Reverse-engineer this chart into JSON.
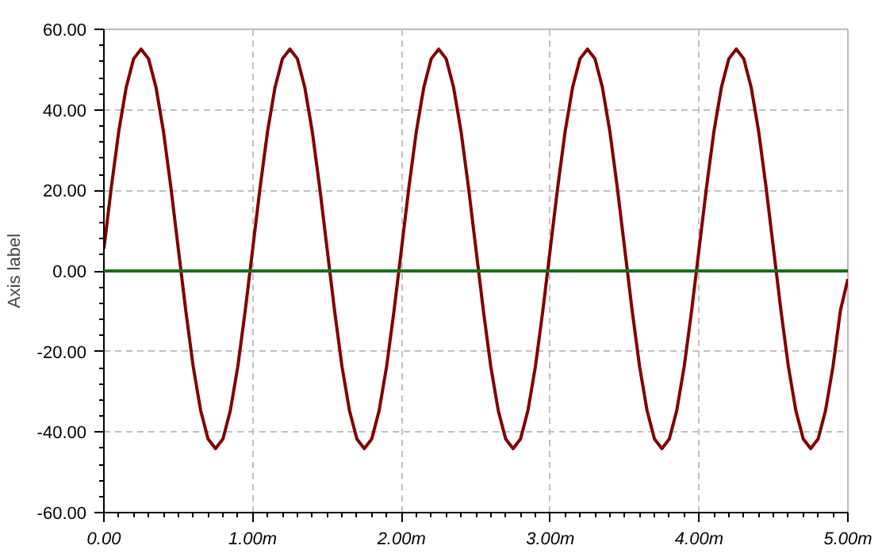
{
  "chart_data": {
    "type": "line",
    "ylabel": "Axis label",
    "x": [
      0,
      0.05,
      0.1,
      0.15,
      0.2,
      0.25,
      0.3,
      0.35,
      0.4,
      0.45,
      0.5,
      0.55,
      0.6,
      0.65,
      0.7,
      0.75,
      0.8,
      0.85,
      0.9,
      0.95,
      1,
      1.05,
      1.1,
      1.15,
      1.2,
      1.25,
      1.3,
      1.35,
      1.4,
      1.45,
      1.5,
      1.55,
      1.6,
      1.65,
      1.7,
      1.75,
      1.8,
      1.85,
      1.9,
      1.95,
      2,
      2.05,
      2.1,
      2.15,
      2.2,
      2.25,
      2.3,
      2.35,
      2.4,
      2.45,
      2.5,
      2.55,
      2.6,
      2.65,
      2.7,
      2.75,
      2.8,
      2.85,
      2.9,
      2.95,
      3,
      3.05,
      3.1,
      3.15,
      3.2,
      3.25,
      3.3,
      3.35,
      3.4,
      3.45,
      3.5,
      3.55,
      3.6,
      3.65,
      3.7,
      3.75,
      3.8,
      3.85,
      3.9,
      3.95,
      4,
      4.05,
      4.1,
      4.15,
      4.2,
      4.25,
      4.3,
      4.35,
      4.4,
      4.45,
      4.5,
      4.55,
      4.6,
      4.65,
      4.7,
      4.75,
      4.8,
      4.85,
      4.9,
      4.95,
      5
    ],
    "series": [
      {
        "color": "#800000",
        "values": [
          5.5,
          20.8,
          34.7,
          45.6,
          52.7,
          55.1,
          52.7,
          45.6,
          34.7,
          20.8,
          5.5,
          -9.8,
          -23.7,
          -34.6,
          -41.7,
          -44.1,
          -41.7,
          -34.6,
          -23.7,
          -9.8,
          5.5,
          20.8,
          34.7,
          45.6,
          52.7,
          55.1,
          52.7,
          45.6,
          34.7,
          20.8,
          5.5,
          -9.8,
          -23.7,
          -34.6,
          -41.7,
          -44.1,
          -41.7,
          -34.6,
          -23.7,
          -9.8,
          5.5,
          20.8,
          34.7,
          45.6,
          52.7,
          55.1,
          52.7,
          45.6,
          34.7,
          20.8,
          5.5,
          -9.8,
          -23.7,
          -34.6,
          -41.7,
          -44.1,
          -41.7,
          -34.6,
          -23.7,
          -9.8,
          5.5,
          20.8,
          34.7,
          45.6,
          52.7,
          55.1,
          52.7,
          45.6,
          34.7,
          20.8,
          5.5,
          -9.8,
          -23.7,
          -34.6,
          -41.7,
          -44.1,
          -41.7,
          -34.6,
          -23.7,
          -9.8,
          5.5,
          20.8,
          34.7,
          45.6,
          52.7,
          55.1,
          52.7,
          45.6,
          34.7,
          20.8,
          5.5,
          -9.8,
          -23.7,
          -34.6,
          -41.7,
          -44.1,
          -41.7,
          -34.6,
          -23.7,
          -9.8,
          -2.0
        ]
      }
    ],
    "ref_lines": [
      {
        "axis": "y",
        "value": 0,
        "color": "#1a6e1a"
      }
    ],
    "xlim": [
      0,
      5
    ],
    "xticks": [
      {
        "value": 0,
        "label": "0.00"
      },
      {
        "value": 1,
        "label": "1.00m"
      },
      {
        "value": 2,
        "label": "2.00m"
      },
      {
        "value": 3,
        "label": "3.00m"
      },
      {
        "value": 4,
        "label": "4.00m"
      },
      {
        "value": 5,
        "label": "5.00m"
      }
    ],
    "ylim": [
      -60,
      60
    ],
    "yticks": [
      {
        "value": -60,
        "label": "-60.00"
      },
      {
        "value": -40,
        "label": "-40.00"
      },
      {
        "value": -20,
        "label": "-20.00"
      },
      {
        "value": 0,
        "label": "0.00"
      },
      {
        "value": 20,
        "label": "20.00"
      },
      {
        "value": 40,
        "label": "40.00"
      },
      {
        "value": 60,
        "label": "60.00"
      }
    ],
    "grid": true,
    "line_style": "solid"
  }
}
